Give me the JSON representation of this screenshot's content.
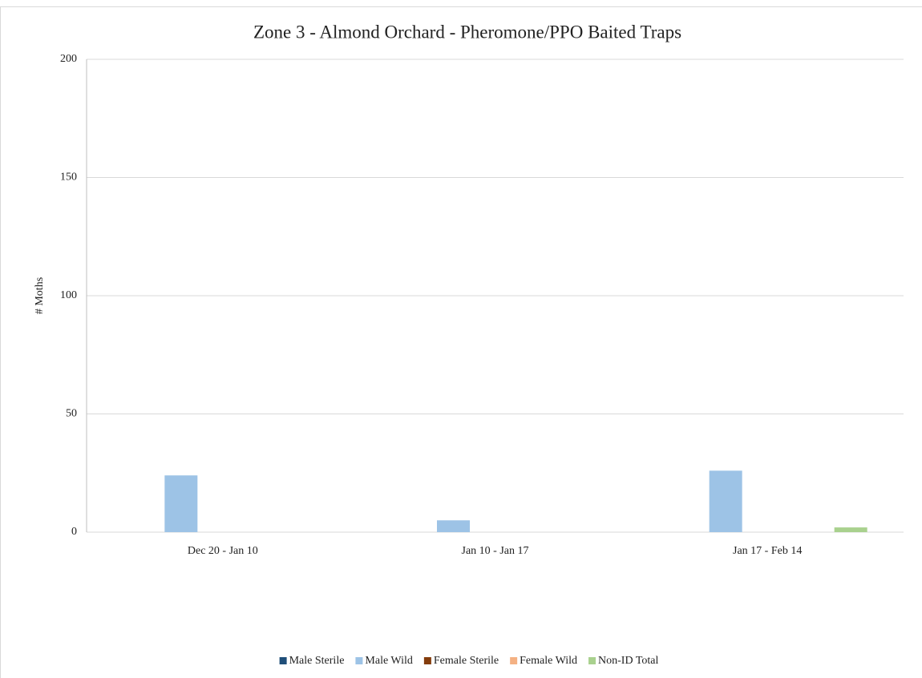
{
  "chart_data": {
    "type": "bar",
    "title": "Zone 3 - Almond Orchard - Pheromone/PPO Baited Traps",
    "y_label": "# Moths",
    "categories": [
      "Dec 20 - Jan 10",
      "Jan 10 - Jan 17",
      "Jan 17 - Feb 14"
    ],
    "series": [
      {
        "name": "Male Sterile",
        "color": "#1f4e79",
        "values": [
          0,
          0,
          0
        ]
      },
      {
        "name": "Male Wild",
        "color": "#9dc3e6",
        "values": [
          24,
          5,
          26
        ]
      },
      {
        "name": "Female Sterile",
        "color": "#843c0c",
        "values": [
          0,
          0,
          0
        ]
      },
      {
        "name": "Female Wild",
        "color": "#f4b183",
        "values": [
          0,
          0,
          0
        ]
      },
      {
        "name": "Non-ID Total",
        "color": "#a9d18e",
        "values": [
          0,
          0,
          2
        ]
      }
    ],
    "ylim": [
      0,
      200
    ],
    "yticks": [
      0,
      50,
      100,
      150,
      200
    ],
    "grid": true,
    "legend": "bottom"
  }
}
